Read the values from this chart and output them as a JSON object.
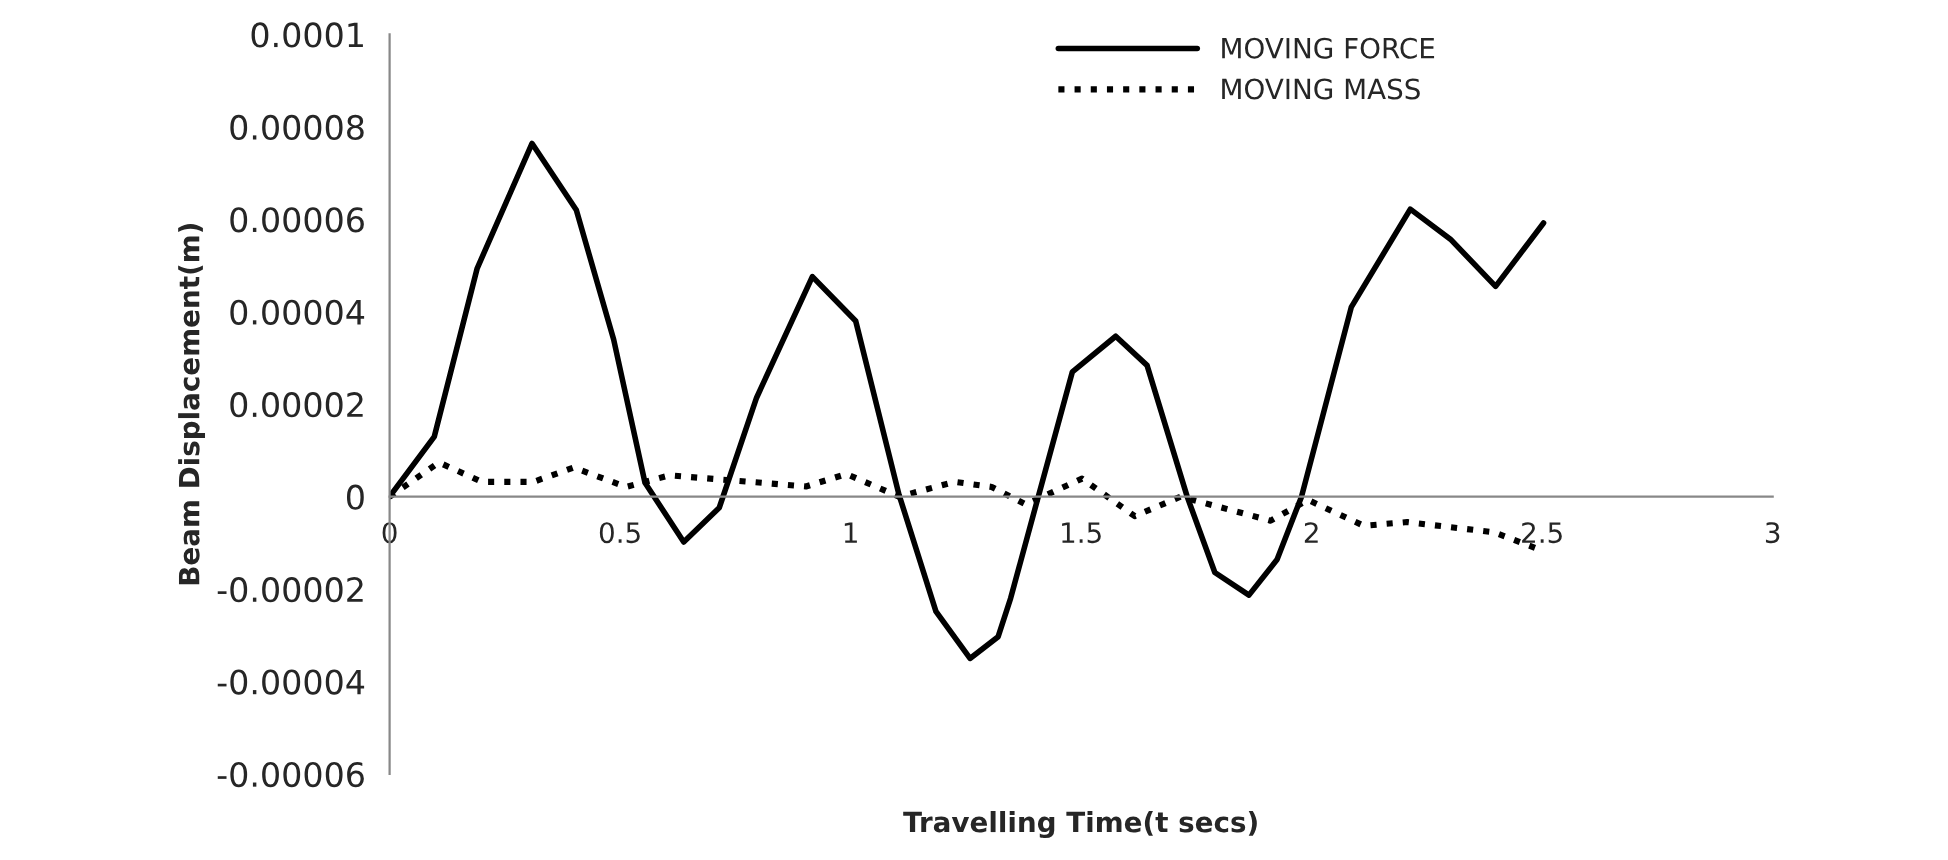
{
  "chart_data": {
    "type": "line",
    "xlabel": "Travelling Time(t secs)",
    "ylabel": "Beam Displacement(m)",
    "xlim": [
      0,
      3
    ],
    "xticks": [
      0,
      0.5,
      1,
      1.5,
      2,
      2.5,
      3
    ],
    "ylim": [
      -6e-05,
      0.0001
    ],
    "yticks": [
      {
        "value": -6e-05,
        "label": "-0.00006"
      },
      {
        "value": -4e-05,
        "label": "-0.00004"
      },
      {
        "value": -2e-05,
        "label": "-0.00002"
      },
      {
        "value": 0,
        "label": "0"
      },
      {
        "value": 2e-05,
        "label": "0.00002"
      },
      {
        "value": 4e-05,
        "label": "0.00004"
      },
      {
        "value": 6e-05,
        "label": "0.00006"
      },
      {
        "value": 8e-05,
        "label": "0.00008"
      },
      {
        "value": 0.0001,
        "label": "0.0001"
      }
    ],
    "grid": false,
    "legend": "top",
    "marker": "none",
    "series": [
      {
        "name": "MOVING FORCE",
        "color": "#000000",
        "line_style": "solid",
        "x": [
          0,
          0.097,
          0.19,
          0.309,
          0.405,
          0.486,
          0.554,
          0.638,
          0.715,
          0.796,
          0.917,
          1.011,
          1.105,
          1.185,
          1.259,
          1.32,
          1.347,
          1.407,
          1.481,
          1.575,
          1.643,
          1.73,
          1.79,
          1.864,
          1.925,
          1.978,
          2.086,
          2.214,
          2.301,
          2.399,
          2.503
        ],
        "values": [
          0,
          1.3e-05,
          4.94e-05,
          7.64e-05,
          6.2e-05,
          3.4e-05,
          3e-06,
          -9.8e-06,
          -2.4e-06,
          2.14e-05,
          4.76e-05,
          3.8e-05,
          4e-07,
          -2.48e-05,
          -3.5e-05,
          -3.03e-05,
          -2.2e-05,
          0,
          2.7e-05,
          3.47e-05,
          2.84e-05,
          0,
          -1.64e-05,
          -2.13e-05,
          -1.36e-05,
          0,
          4.1e-05,
          6.22e-05,
          5.57e-05,
          4.55e-05,
          5.92e-05
        ]
      },
      {
        "name": "MOVING MASS",
        "color": "#000000",
        "line_style": "dotted",
        "x": [
          0,
          0.107,
          0.2,
          0.312,
          0.399,
          0.513,
          0.607,
          0.782,
          0.903,
          0.991,
          1.105,
          1.226,
          1.306,
          1.38,
          1.502,
          1.616,
          1.716,
          1.911,
          1.992,
          2.113,
          2.207,
          2.395,
          2.496
        ],
        "values": [
          0,
          7.4e-06,
          3.2e-06,
          3.2e-06,
          6.3e-06,
          2.1e-06,
          4.6e-06,
          3.2e-06,
          2.2e-06,
          4.9e-06,
          0,
          3.2e-06,
          2.1e-06,
          -1.7e-06,
          3.9e-06,
          -4.2e-06,
          0,
          -5.2e-06,
          -7e-07,
          -6.3e-06,
          -5.5e-06,
          -7.7e-06,
          -1.15e-05
        ]
      }
    ]
  }
}
